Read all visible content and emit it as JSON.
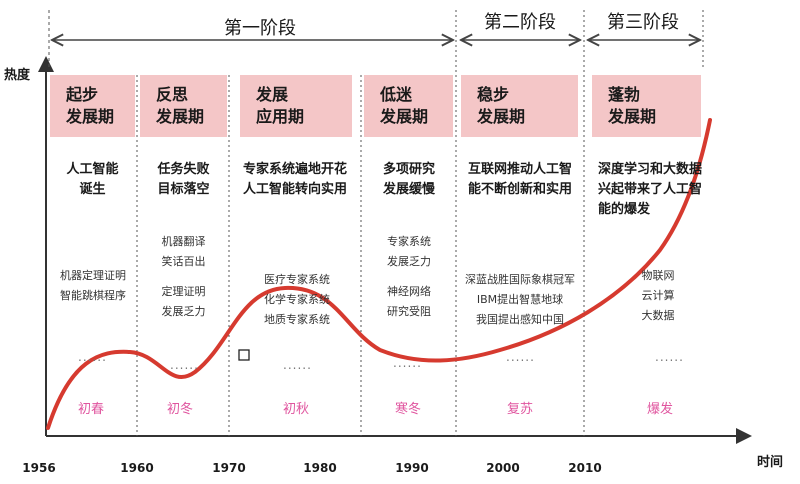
{
  "axis": {
    "y_title": "热度",
    "x_title": "时间"
  },
  "stages": [
    {
      "label": "第一阶段"
    },
    {
      "label": "第二阶段"
    },
    {
      "label": "第三阶段"
    }
  ],
  "years": [
    "1956",
    "1960",
    "1970",
    "1980",
    "1990",
    "2000",
    "2010"
  ],
  "periods": [
    {
      "line1": "起步",
      "line2": "发展期",
      "headline": [
        "人工智能",
        "诞生"
      ],
      "notes": [
        "机器定理证明",
        "智能跳棋程序"
      ],
      "season": "初春"
    },
    {
      "line1": "反思",
      "line2": "发展期",
      "headline": [
        "任务失败",
        "目标落空"
      ],
      "notes": [
        "机器翻译",
        "笑话百出",
        "",
        "定理证明",
        "发展乏力"
      ],
      "season": "初冬"
    },
    {
      "line1": "发展",
      "line2": "应用期",
      "headline": [
        "专家系统遍地开花",
        "人工智能转向实用"
      ],
      "notes": [
        "医疗专家系统",
        "化学专家系统",
        "地质专家系统"
      ],
      "season": "初秋"
    },
    {
      "line1": "低迷",
      "line2": "发展期",
      "headline": [
        "多项研究",
        "发展缓慢"
      ],
      "notes": [
        "专家系统",
        "发展乏力",
        "",
        "神经网络",
        "研究受阻"
      ],
      "season": "寒冬"
    },
    {
      "line1": "稳步",
      "line2": "发展期",
      "headline": [
        "互联网推动人工智",
        "能不断创新和实用"
      ],
      "notes": [
        "深蓝战胜国际象棋冠军",
        "IBM提出智慧地球",
        "我国提出感知中国"
      ],
      "season": "复苏"
    },
    {
      "line1": "蓬勃",
      "line2": "发展期",
      "headline": [
        "深度学习和大数据",
        "兴起带来了人工智",
        "能的爆发"
      ],
      "notes": [
        "物联网",
        "云计算",
        "大数据"
      ],
      "season": "爆发"
    }
  ],
  "ellipsis": "......",
  "colors": {
    "box": "#f4c6c7",
    "curve": "#d63a2f",
    "season": "#e0559f"
  }
}
